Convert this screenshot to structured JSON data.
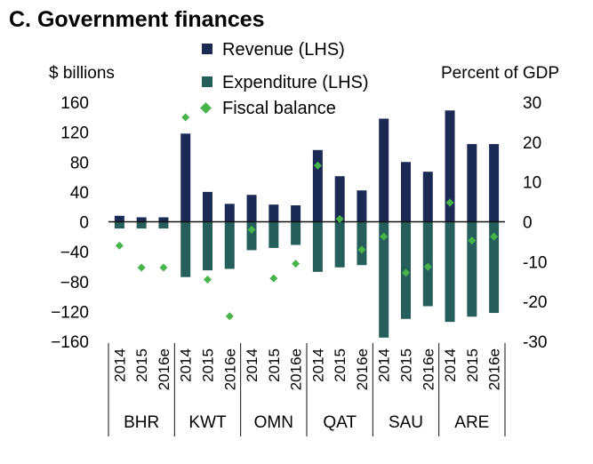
{
  "chart_data": {
    "type": "bar",
    "title": "C. Government finances",
    "left_axis_label": "$ billions",
    "right_axis_label": "Percent of GDP",
    "ylim_left": [
      -160,
      160
    ],
    "ylim_right": [
      -30,
      30
    ],
    "yticks_left": [
      "160",
      "120",
      "80",
      "40",
      "0",
      "−40",
      "−80",
      "−120",
      "−160"
    ],
    "yticks_right": [
      "30",
      "20",
      "10",
      "0",
      "-10",
      "-20",
      "-30"
    ],
    "groups": [
      {
        "name": "BHR",
        "years": [
          "2014",
          "2015",
          "2016e"
        ]
      },
      {
        "name": "KWT",
        "years": [
          "2014",
          "2015",
          "2016e"
        ]
      },
      {
        "name": "OMN",
        "years": [
          "2014",
          "2015",
          "2016e"
        ]
      },
      {
        "name": "QAT",
        "years": [
          "2014",
          "2015",
          "2016e"
        ]
      },
      {
        "name": "SAU",
        "years": [
          "2014",
          "2015",
          "2016e"
        ]
      },
      {
        "name": "ARE",
        "years": [
          "2014",
          "2015",
          "2016e"
        ]
      }
    ],
    "series": [
      {
        "name": "Revenue (LHS)",
        "axis": "left",
        "color": "#1b2a55",
        "values": [
          8,
          6,
          6,
          118,
          40,
          24,
          36,
          23,
          22,
          96,
          61,
          42,
          138,
          80,
          67,
          149,
          104,
          104
        ]
      },
      {
        "name": "Expenditure (LHS)",
        "axis": "left",
        "color": "#255e5b",
        "values": [
          -9,
          -9,
          -9,
          -74,
          -65,
          -63,
          -38,
          -35,
          -31,
          -67,
          -61,
          -58,
          -155,
          -130,
          -113,
          -134,
          -127,
          -122
        ]
      },
      {
        "name": "Fiscal balance",
        "axis": "right",
        "color": "#47b34b",
        "values": [
          -6,
          -11.5,
          -11.5,
          26.2,
          -14.5,
          -23.7,
          -2,
          -14.2,
          -10.5,
          14.1,
          0.7,
          -7,
          -3.7,
          -12.8,
          -11.3,
          4.8,
          -4.7,
          -3.7
        ]
      }
    ]
  }
}
